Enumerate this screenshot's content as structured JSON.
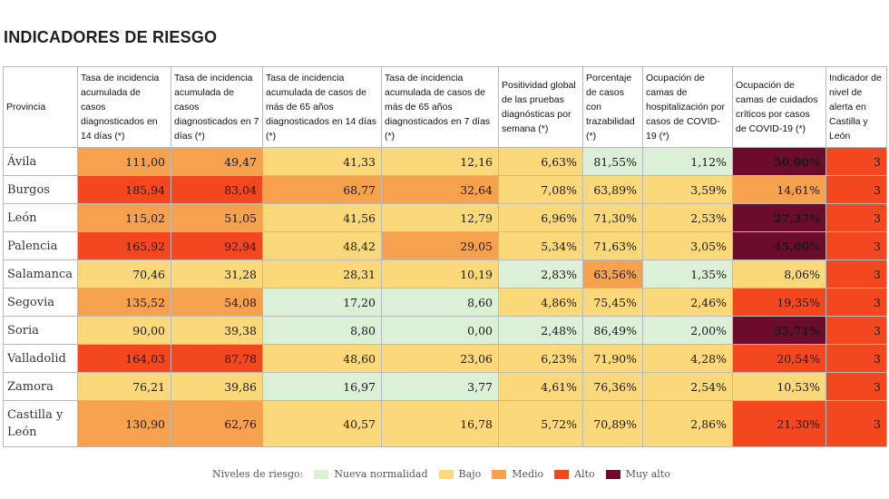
{
  "title": "INDICADORES DE RIESGO",
  "colors": {
    "nueva": "#dcefd7",
    "bajo": "#fbd97a",
    "medio": "#f6a14e",
    "alto": "#f3481f",
    "muy_alto": "#6d0b2d"
  },
  "headers": [
    "Provincia",
    "Tasa de incidencia acumulada de casos diagnosticados en 14 días (*)",
    "Tasa de incidencia acumulada de casos diagnosticados en 7 días (*)",
    "Tasa de incidencia acumulada de casos de más de 65 años diagnosticados en 14 días (*)",
    "Tasa de incidencia acumulada de casos de más de 65 años diagnosticados en 7 días (*)",
    "Positividad global de las pruebas diagnósticas por semana (*)",
    "Porcentaje de casos con trazabilidad (*)",
    "Ocupación de camas de hospitalización por casos de COVID-19 (*)",
    "Ocupación de camas de cuidados críticos por casos de COVID-19 (*)",
    "Indicador de nivel de alerta en Castilla y León"
  ],
  "rows": [
    {
      "name": "Ávila",
      "cells": [
        {
          "v": "111,00",
          "c": "medio"
        },
        {
          "v": "49,47",
          "c": "medio"
        },
        {
          "v": "41,33",
          "c": "bajo"
        },
        {
          "v": "12,16",
          "c": "bajo"
        },
        {
          "v": "6,63%",
          "c": "bajo"
        },
        {
          "v": "81,55%",
          "c": "nueva"
        },
        {
          "v": "1,12%",
          "c": "nueva"
        },
        {
          "v": "50,00%",
          "c": "muy_alto"
        },
        {
          "v": "3",
          "c": "alto"
        }
      ]
    },
    {
      "name": "Burgos",
      "cells": [
        {
          "v": "185,94",
          "c": "alto"
        },
        {
          "v": "83,04",
          "c": "alto"
        },
        {
          "v": "68,77",
          "c": "medio"
        },
        {
          "v": "32,64",
          "c": "medio"
        },
        {
          "v": "7,08%",
          "c": "bajo"
        },
        {
          "v": "63,89%",
          "c": "bajo"
        },
        {
          "v": "3,59%",
          "c": "bajo"
        },
        {
          "v": "14,61%",
          "c": "medio"
        },
        {
          "v": "3",
          "c": "alto"
        }
      ]
    },
    {
      "name": "León",
      "cells": [
        {
          "v": "115,02",
          "c": "medio"
        },
        {
          "v": "51,05",
          "c": "medio"
        },
        {
          "v": "41,56",
          "c": "bajo"
        },
        {
          "v": "12,79",
          "c": "bajo"
        },
        {
          "v": "6,96%",
          "c": "bajo"
        },
        {
          "v": "71,30%",
          "c": "bajo"
        },
        {
          "v": "2,53%",
          "c": "bajo"
        },
        {
          "v": "27,37%",
          "c": "muy_alto"
        },
        {
          "v": "3",
          "c": "alto"
        }
      ]
    },
    {
      "name": "Palencia",
      "cells": [
        {
          "v": "165,92",
          "c": "alto"
        },
        {
          "v": "92,94",
          "c": "alto"
        },
        {
          "v": "48,42",
          "c": "bajo"
        },
        {
          "v": "29,05",
          "c": "medio"
        },
        {
          "v": "5,34%",
          "c": "bajo"
        },
        {
          "v": "71,63%",
          "c": "bajo"
        },
        {
          "v": "3,05%",
          "c": "bajo"
        },
        {
          "v": "45,00%",
          "c": "muy_alto"
        },
        {
          "v": "3",
          "c": "alto"
        }
      ]
    },
    {
      "name": "Salamanca",
      "cells": [
        {
          "v": "70,46",
          "c": "bajo"
        },
        {
          "v": "31,28",
          "c": "bajo"
        },
        {
          "v": "28,31",
          "c": "bajo"
        },
        {
          "v": "10,19",
          "c": "bajo"
        },
        {
          "v": "2,83%",
          "c": "nueva"
        },
        {
          "v": "63,56%",
          "c": "medio"
        },
        {
          "v": "1,35%",
          "c": "nueva"
        },
        {
          "v": "8,06%",
          "c": "bajo"
        },
        {
          "v": "3",
          "c": "alto"
        }
      ]
    },
    {
      "name": "Segovia",
      "cells": [
        {
          "v": "135,52",
          "c": "medio"
        },
        {
          "v": "54,08",
          "c": "medio"
        },
        {
          "v": "17,20",
          "c": "nueva"
        },
        {
          "v": "8,60",
          "c": "nueva"
        },
        {
          "v": "4,86%",
          "c": "bajo"
        },
        {
          "v": "75,45%",
          "c": "bajo"
        },
        {
          "v": "2,46%",
          "c": "bajo"
        },
        {
          "v": "19,35%",
          "c": "alto"
        },
        {
          "v": "3",
          "c": "alto"
        }
      ]
    },
    {
      "name": "Soria",
      "cells": [
        {
          "v": "90,00",
          "c": "bajo"
        },
        {
          "v": "39,38",
          "c": "bajo"
        },
        {
          "v": "8,80",
          "c": "nueva"
        },
        {
          "v": "0,00",
          "c": "nueva"
        },
        {
          "v": "2,48%",
          "c": "nueva"
        },
        {
          "v": "86,49%",
          "c": "nueva"
        },
        {
          "v": "2,00%",
          "c": "nueva"
        },
        {
          "v": "35,71%",
          "c": "muy_alto"
        },
        {
          "v": "3",
          "c": "alto"
        }
      ]
    },
    {
      "name": "Valladolid",
      "cells": [
        {
          "v": "164,03",
          "c": "alto"
        },
        {
          "v": "87,78",
          "c": "alto"
        },
        {
          "v": "48,60",
          "c": "bajo"
        },
        {
          "v": "23,06",
          "c": "bajo"
        },
        {
          "v": "6,23%",
          "c": "bajo"
        },
        {
          "v": "71,90%",
          "c": "bajo"
        },
        {
          "v": "4,28%",
          "c": "bajo"
        },
        {
          "v": "20,54%",
          "c": "alto"
        },
        {
          "v": "3",
          "c": "alto"
        }
      ]
    },
    {
      "name": "Zamora",
      "cells": [
        {
          "v": "76,21",
          "c": "bajo"
        },
        {
          "v": "39,86",
          "c": "bajo"
        },
        {
          "v": "16,97",
          "c": "nueva"
        },
        {
          "v": "3,77",
          "c": "nueva"
        },
        {
          "v": "4,61%",
          "c": "bajo"
        },
        {
          "v": "76,36%",
          "c": "bajo"
        },
        {
          "v": "2,54%",
          "c": "bajo"
        },
        {
          "v": "10,53%",
          "c": "bajo"
        },
        {
          "v": "3",
          "c": "alto"
        }
      ]
    },
    {
      "name": "Castilla y León",
      "cells": [
        {
          "v": "130,90",
          "c": "medio"
        },
        {
          "v": "62,76",
          "c": "medio"
        },
        {
          "v": "40,57",
          "c": "bajo"
        },
        {
          "v": "16,78",
          "c": "bajo"
        },
        {
          "v": "5,72%",
          "c": "bajo"
        },
        {
          "v": "70,89%",
          "c": "bajo"
        },
        {
          "v": "2,86%",
          "c": "bajo"
        },
        {
          "v": "21,30%",
          "c": "alto"
        },
        {
          "v": "3",
          "c": "alto"
        }
      ]
    }
  ],
  "legend": {
    "label": "Niveles de riesgo:",
    "items": [
      {
        "key": "nueva",
        "label": "Nueva normalidad"
      },
      {
        "key": "bajo",
        "label": "Bajo"
      },
      {
        "key": "medio",
        "label": "Medio"
      },
      {
        "key": "alto",
        "label": "Alto"
      },
      {
        "key": "muy_alto",
        "label": "Muy alto"
      }
    ]
  }
}
